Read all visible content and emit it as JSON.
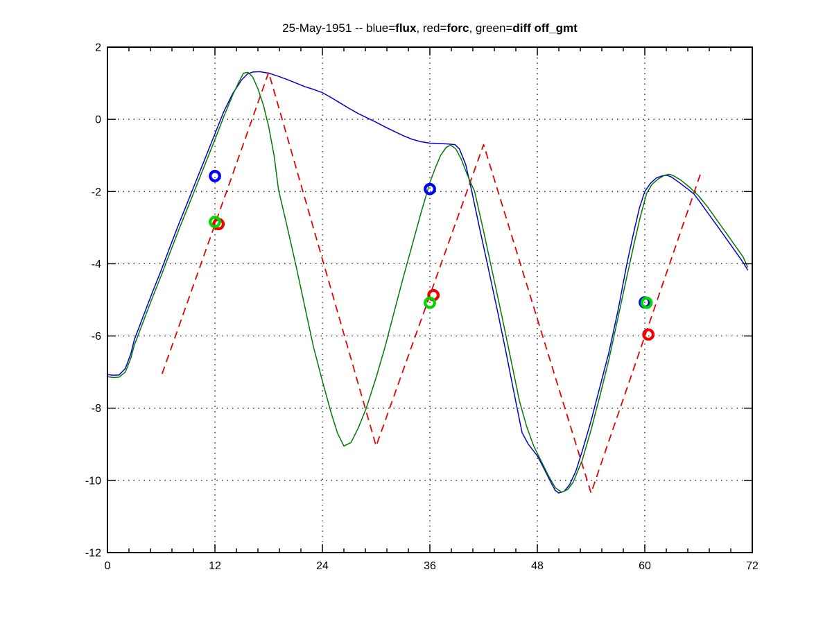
{
  "figure": {
    "background": "#ffffff",
    "title_plain": "25-May-1951 -- blue=flux, red=forc, green=diff off_gmt"
  },
  "chart_data": {
    "type": "line",
    "title_segments": [
      {
        "text": "25-May-1951 -- blue=",
        "bold": false
      },
      {
        "text": "flux",
        "bold": true
      },
      {
        "text": ", red=",
        "bold": false
      },
      {
        "text": "forc",
        "bold": true
      },
      {
        "text": ", green=",
        "bold": false
      },
      {
        "text": "diff off_gmt",
        "bold": true
      }
    ],
    "x_range": [
      0,
      72
    ],
    "y_range": [
      -12,
      2
    ],
    "x_ticks": [
      0,
      12,
      24,
      36,
      48,
      60,
      72
    ],
    "y_ticks": [
      2,
      0,
      -2,
      -4,
      -6,
      -8,
      -10,
      -12
    ],
    "x_minor_step": 2.4,
    "grid": "dotted-at-major-ticks",
    "legend_position": "in-title",
    "axis_color": "#000000",
    "grid_color": "#000000",
    "series": [
      {
        "name": "flux",
        "color": "#0000cd",
        "style": "solid",
        "width": 1.5,
        "points": [
          [
            0,
            -7.07
          ],
          [
            0.7,
            -7.09
          ],
          [
            1.3,
            -7.08
          ],
          [
            2,
            -6.9
          ],
          [
            2.6,
            -6.5
          ],
          [
            3,
            -6.1
          ],
          [
            4,
            -5.45
          ],
          [
            5,
            -4.8
          ],
          [
            6,
            -4.18
          ],
          [
            7,
            -3.52
          ],
          [
            8,
            -2.88
          ],
          [
            9,
            -2.26
          ],
          [
            10,
            -1.64
          ],
          [
            11,
            -1.02
          ],
          [
            12,
            -0.4
          ],
          [
            13,
            0.22
          ],
          [
            14,
            0.72
          ],
          [
            15,
            1.1
          ],
          [
            15.6,
            1.25
          ],
          [
            16.2,
            1.31
          ],
          [
            17,
            1.32
          ],
          [
            18,
            1.28
          ],
          [
            19,
            1.2
          ],
          [
            20,
            1.11
          ],
          [
            21,
            1.01
          ],
          [
            22,
            0.91
          ],
          [
            23,
            0.83
          ],
          [
            24,
            0.74
          ],
          [
            25,
            0.6
          ],
          [
            26,
            0.45
          ],
          [
            27,
            0.3
          ],
          [
            28,
            0.16
          ],
          [
            29,
            0.04
          ],
          [
            30,
            -0.08
          ],
          [
            31,
            -0.21
          ],
          [
            32,
            -0.33
          ],
          [
            33,
            -0.45
          ],
          [
            34,
            -0.55
          ],
          [
            35,
            -0.62
          ],
          [
            36,
            -0.66
          ],
          [
            37,
            -0.67
          ],
          [
            38,
            -0.68
          ],
          [
            38.8,
            -0.7
          ],
          [
            39.3,
            -0.82
          ],
          [
            40,
            -1.25
          ],
          [
            40.6,
            -1.9
          ],
          [
            41.5,
            -2.95
          ],
          [
            42.5,
            -4.1
          ],
          [
            43.5,
            -5.25
          ],
          [
            44.5,
            -6.45
          ],
          [
            45.5,
            -7.7
          ],
          [
            46.3,
            -8.68
          ],
          [
            47,
            -9.0
          ],
          [
            48,
            -9.32
          ],
          [
            48.7,
            -9.65
          ],
          [
            49.4,
            -10.0
          ],
          [
            50,
            -10.28
          ],
          [
            50.4,
            -10.35
          ],
          [
            51,
            -10.3
          ],
          [
            51.6,
            -10.12
          ],
          [
            52.3,
            -9.75
          ],
          [
            53,
            -9.2
          ],
          [
            54,
            -8.35
          ],
          [
            55,
            -7.4
          ],
          [
            56,
            -6.45
          ],
          [
            57,
            -5.3
          ],
          [
            58,
            -4.0
          ],
          [
            58.7,
            -3.2
          ],
          [
            59.4,
            -2.45
          ],
          [
            60,
            -2.0
          ],
          [
            60.6,
            -1.78
          ],
          [
            61.3,
            -1.62
          ],
          [
            62,
            -1.56
          ],
          [
            62.5,
            -1.55
          ],
          [
            63,
            -1.6
          ],
          [
            64,
            -1.78
          ],
          [
            65,
            -1.97
          ],
          [
            65.5,
            -2.07
          ],
          [
            66.2,
            -2.3
          ],
          [
            67,
            -2.58
          ],
          [
            68,
            -2.92
          ],
          [
            69,
            -3.27
          ],
          [
            70,
            -3.62
          ],
          [
            71,
            -3.97
          ],
          [
            71.5,
            -4.18
          ]
        ]
      },
      {
        "name": "forc",
        "color": "#e60000",
        "style": "dashed",
        "width": 1.8,
        "points": [
          [
            6.1,
            -7.05
          ],
          [
            18,
            1.3
          ],
          [
            30,
            -9.05
          ],
          [
            42,
            -0.7
          ],
          [
            54,
            -10.35
          ],
          [
            66.3,
            -1.45
          ]
        ]
      },
      {
        "name": "diff",
        "color": "#007a00",
        "style": "solid",
        "width": 1.5,
        "points": [
          [
            0,
            -7.13
          ],
          [
            0.7,
            -7.15
          ],
          [
            1.3,
            -7.14
          ],
          [
            2,
            -7.0
          ],
          [
            2.6,
            -6.62
          ],
          [
            3,
            -6.25
          ],
          [
            4,
            -5.6
          ],
          [
            5,
            -4.95
          ],
          [
            6,
            -4.33
          ],
          [
            7,
            -3.68
          ],
          [
            8,
            -3.04
          ],
          [
            9,
            -2.42
          ],
          [
            10,
            -1.8
          ],
          [
            11,
            -1.18
          ],
          [
            12,
            -0.56
          ],
          [
            13,
            0.08
          ],
          [
            14,
            0.68
          ],
          [
            14.7,
            1.05
          ],
          [
            15.2,
            1.28
          ],
          [
            15.7,
            1.3
          ],
          [
            16.2,
            1.18
          ],
          [
            16.8,
            0.85
          ],
          [
            17.4,
            0.4
          ],
          [
            18,
            -0.2
          ],
          [
            18.6,
            -1.0
          ],
          [
            19.1,
            -1.95
          ],
          [
            20,
            -2.9
          ],
          [
            21,
            -4.0
          ],
          [
            22,
            -5.15
          ],
          [
            23,
            -6.3
          ],
          [
            24,
            -7.25
          ],
          [
            25,
            -8.15
          ],
          [
            25.7,
            -8.7
          ],
          [
            26.4,
            -9.05
          ],
          [
            27.2,
            -8.95
          ],
          [
            28,
            -8.55
          ],
          [
            28.9,
            -8.0
          ],
          [
            30,
            -7.15
          ],
          [
            31,
            -6.3
          ],
          [
            32,
            -5.35
          ],
          [
            33,
            -4.4
          ],
          [
            34,
            -3.5
          ],
          [
            35,
            -2.6
          ],
          [
            36,
            -1.75
          ],
          [
            36.6,
            -1.35
          ],
          [
            37.2,
            -1.0
          ],
          [
            37.8,
            -0.78
          ],
          [
            38.3,
            -0.71
          ],
          [
            38.9,
            -0.82
          ],
          [
            39.5,
            -1.1
          ],
          [
            40.2,
            -1.55
          ],
          [
            41,
            -2.0
          ],
          [
            42,
            -3.1
          ],
          [
            43,
            -4.25
          ],
          [
            44,
            -5.4
          ],
          [
            45,
            -6.6
          ],
          [
            46,
            -7.8
          ],
          [
            46.8,
            -8.5
          ],
          [
            47.6,
            -9.05
          ],
          [
            48.4,
            -9.45
          ],
          [
            49.2,
            -9.85
          ],
          [
            50,
            -10.2
          ],
          [
            50.7,
            -10.33
          ],
          [
            51.4,
            -10.25
          ],
          [
            52,
            -10.05
          ],
          [
            53,
            -9.45
          ],
          [
            54,
            -8.6
          ],
          [
            55,
            -7.65
          ],
          [
            56,
            -6.65
          ],
          [
            57,
            -5.5
          ],
          [
            58,
            -4.35
          ],
          [
            58.8,
            -3.45
          ],
          [
            59.5,
            -2.7
          ],
          [
            60.2,
            -2.05
          ],
          [
            60.8,
            -1.8
          ],
          [
            61.5,
            -1.65
          ],
          [
            62.2,
            -1.55
          ],
          [
            62.7,
            -1.52
          ],
          [
            63.2,
            -1.56
          ],
          [
            64,
            -1.68
          ],
          [
            65,
            -1.88
          ],
          [
            66,
            -2.12
          ],
          [
            67,
            -2.42
          ],
          [
            68,
            -2.77
          ],
          [
            69,
            -3.12
          ],
          [
            70,
            -3.47
          ],
          [
            71,
            -3.82
          ],
          [
            71.5,
            -4.1
          ]
        ]
      }
    ],
    "markers": [
      {
        "name": "flux-circles",
        "color": "#0000ff",
        "shape": "circle",
        "points": [
          [
            12,
            -1.57
          ],
          [
            36,
            -1.93
          ],
          [
            60,
            -5.07
          ]
        ]
      },
      {
        "name": "forc-circles",
        "color": "#f20000",
        "shape": "circle",
        "points": [
          [
            12.4,
            -2.9
          ],
          [
            36.4,
            -4.87
          ],
          [
            60.4,
            -5.96
          ]
        ]
      },
      {
        "name": "diff-circles",
        "color": "#00d500",
        "shape": "circle",
        "points": [
          [
            12,
            -2.84
          ],
          [
            36,
            -5.08
          ],
          [
            60.2,
            -5.08
          ]
        ]
      }
    ]
  }
}
